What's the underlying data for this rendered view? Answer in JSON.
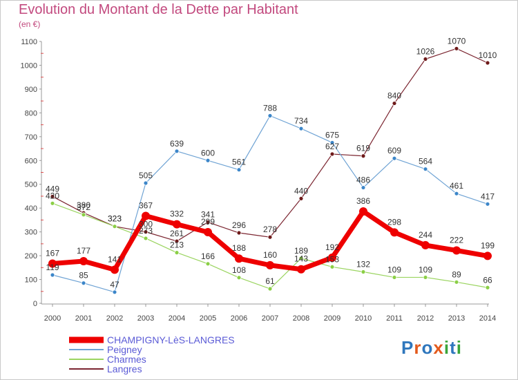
{
  "title": "Evolution du Montant de la Dette par Habitant",
  "unit": "(en €)",
  "logo": {
    "text": "Proxiti",
    "colors": [
      "#2f77bd",
      "#e35a1c",
      "#2f77bd",
      "#e35a1c",
      "#3aa43a",
      "#2f77bd",
      "#3aa43a"
    ]
  },
  "chart_data": {
    "type": "line",
    "x": [
      "2000",
      "2001",
      "2002",
      "2003",
      "2004",
      "2005",
      "2006",
      "2007",
      "2008",
      "2009",
      "2010",
      "2011",
      "2012",
      "2013",
      "2014"
    ],
    "ylim": [
      0,
      1100
    ],
    "yticks": [
      "0",
      "100",
      "200",
      "300",
      "400",
      "500",
      "600",
      "700",
      "800",
      "900",
      "1000",
      "1100"
    ],
    "grid": false,
    "legend_position": "bottom-left",
    "series": [
      {
        "name": "Langres",
        "color": "#7b2530",
        "marker": "#6e1a1a",
        "width": 1.2,
        "values": [
          449,
          380,
          323,
          300,
          261,
          341,
          296,
          278,
          440,
          627,
          619,
          840,
          1026,
          1070,
          1010
        ],
        "labels": [
          "449",
          "380",
          "323",
          "300",
          "261",
          "341",
          "296",
          "278",
          "440",
          "627",
          "619",
          "840",
          "1026",
          "1070",
          "1010"
        ]
      },
      {
        "name": "Charmes",
        "color": "#9ad45f",
        "marker": "#8bcf46",
        "width": 1.2,
        "values": [
          420,
          372,
          323,
          273,
          213,
          166,
          108,
          61,
          189,
          153,
          132,
          109,
          109,
          89,
          66
        ],
        "labels": [
          "420",
          "372",
          "323",
          "273",
          "213",
          "166",
          "108",
          "61",
          "189",
          "153",
          "132",
          "109",
          "109",
          "89",
          "66"
        ]
      },
      {
        "name": "Peigney",
        "color": "#6fa3d4",
        "marker": "#3c86c9",
        "width": 1.2,
        "values": [
          119,
          85,
          47,
          505,
          639,
          600,
          561,
          788,
          734,
          675,
          486,
          609,
          564,
          461,
          417
        ],
        "labels": [
          "119",
          "85",
          "47",
          "505",
          "639",
          "600",
          "561",
          "788",
          "734",
          "675",
          "486",
          "609",
          "564",
          "461",
          "417"
        ]
      },
      {
        "name": "CHAMPIGNY-LèS-LANGRES",
        "color": "#ee0000",
        "marker": "#ee0000",
        "width": 7,
        "values": [
          167,
          177,
          141,
          367,
          332,
          299,
          188,
          160,
          143,
          192,
          386,
          298,
          244,
          222,
          199
        ],
        "labels": [
          "167",
          "177",
          "141",
          "367",
          "332",
          "299",
          "188",
          "160",
          "143",
          "192",
          "386",
          "298",
          "244",
          "222",
          "199"
        ]
      }
    ],
    "legend_order": [
      "CHAMPIGNY-LèS-LANGRES",
      "Peigney",
      "Charmes",
      "Langres"
    ]
  }
}
